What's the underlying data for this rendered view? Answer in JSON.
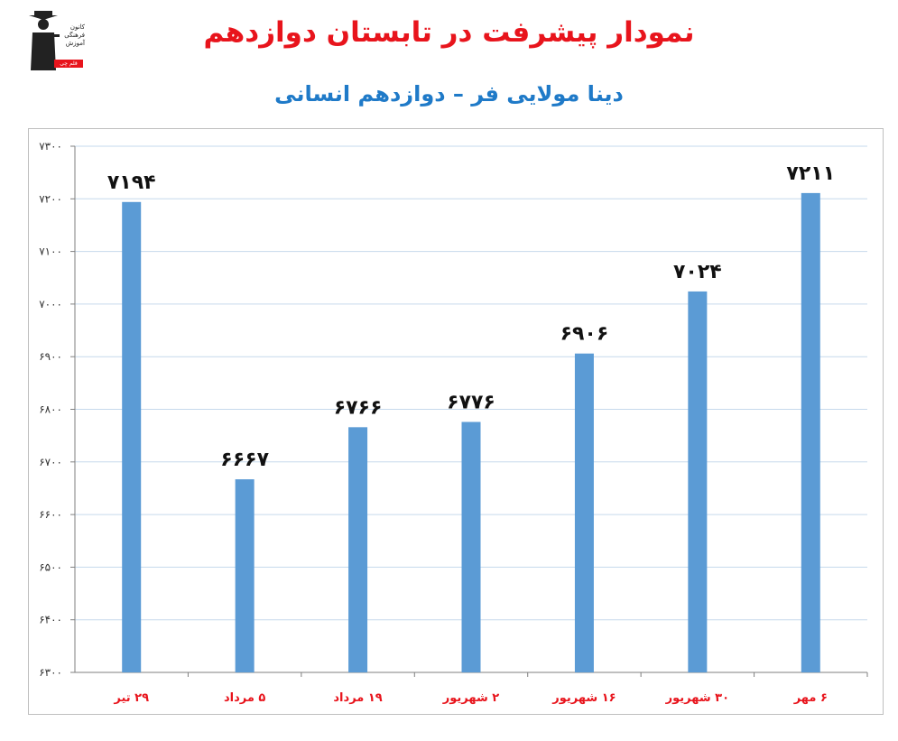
{
  "header": {
    "title": "نمودار پیشرفت در تابستان دوازدهم",
    "subtitle": "دینا مولایی فر – دوازدهم انسانی"
  },
  "logo": {
    "lines": [
      "کانون",
      "فرهنگی",
      "آموزش"
    ],
    "badge": "قلم چی"
  },
  "colors": {
    "bar": "#5b9bd5",
    "title": "#e8141c",
    "subtitle": "#1f7ac8",
    "grid": "#c6d9ec",
    "xlabel": "#e8141c"
  },
  "chart_data": {
    "type": "bar",
    "title": "نمودار پیشرفت در تابستان دوازدهم",
    "subtitle": "دینا مولایی فر – دوازدهم انسانی",
    "categories": [
      "۲۹ تیر",
      "۵ مرداد",
      "۱۹ مرداد",
      "۲ شهریور",
      "۱۶ شهریور",
      "۳۰ شهریور",
      "۶ مهر"
    ],
    "values": [
      7194,
      6667,
      6766,
      6776,
      6906,
      7024,
      7211
    ],
    "value_labels": [
      "۷۱۹۴",
      "۶۶۶۷",
      "۶۷۶۶",
      "۶۷۷۶",
      "۶۹۰۶",
      "۷۰۲۴",
      "۷۲۱۱"
    ],
    "ylim": [
      6300,
      7300
    ],
    "yticks": [
      6300,
      6400,
      6500,
      6600,
      6700,
      6800,
      6900,
      7000,
      7100,
      7200,
      7300
    ],
    "ytick_labels": [
      "۶۳۰۰",
      "۶۴۰۰",
      "۶۵۰۰",
      "۶۶۰۰",
      "۶۷۰۰",
      "۶۸۰۰",
      "۶۹۰۰",
      "۷۰۰۰",
      "۷۱۰۰",
      "۷۲۰۰",
      "۷۳۰۰"
    ],
    "grid": true,
    "xlabel": "",
    "ylabel": ""
  }
}
